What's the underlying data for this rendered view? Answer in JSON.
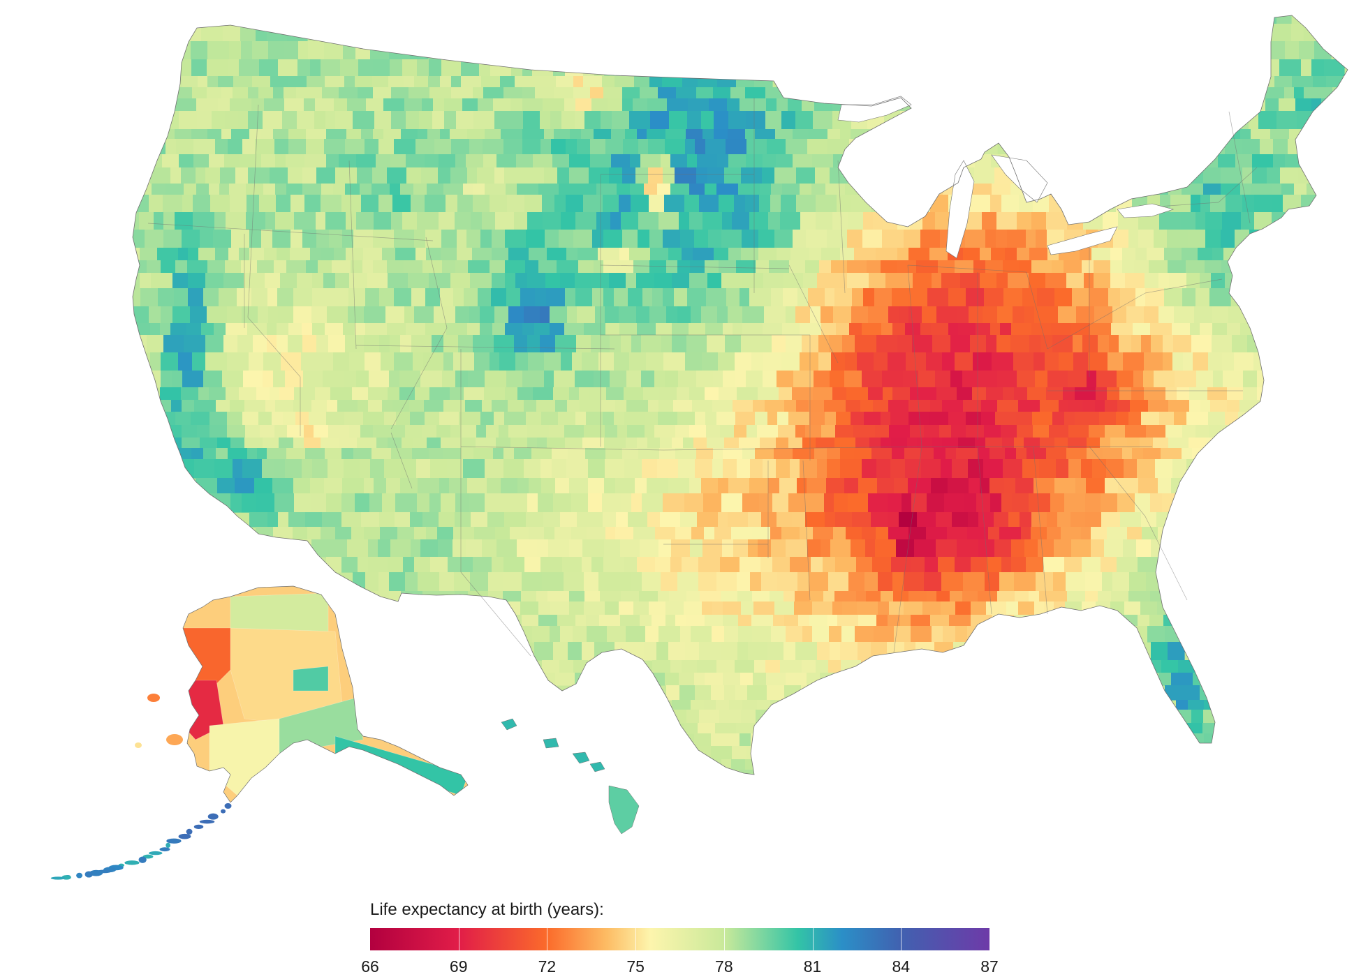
{
  "legend": {
    "title": "Life expectancy at birth (years):",
    "min": 66,
    "max": 87,
    "ticks": [
      "66",
      "69",
      "72",
      "75",
      "78",
      "81",
      "84",
      "87"
    ],
    "stops": [
      {
        "value": 66,
        "color": "#b2003f"
      },
      {
        "value": 69,
        "color": "#e11d48"
      },
      {
        "value": 72,
        "color": "#fb6b2b"
      },
      {
        "value": 74,
        "color": "#fdbb63"
      },
      {
        "value": 75.5,
        "color": "#fdf5ad"
      },
      {
        "value": 78,
        "color": "#c9e99a"
      },
      {
        "value": 80.5,
        "color": "#33c4a6"
      },
      {
        "value": 82,
        "color": "#2b8fc7"
      },
      {
        "value": 84,
        "color": "#4161b0"
      },
      {
        "value": 87,
        "color": "#6e3aa8"
      }
    ]
  },
  "colors": {
    "background": "#ffffff",
    "state_border": "#6f6f6f",
    "text": "#1a1a1a"
  }
}
